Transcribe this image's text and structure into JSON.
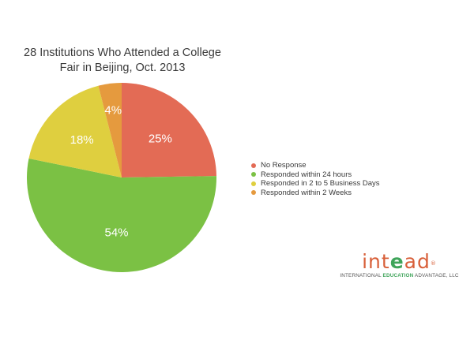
{
  "chart_data": {
    "type": "pie",
    "title_lines": [
      "28 Institutions Who Attended a College",
      "Fair in Beijing, Oct. 2013"
    ],
    "slices": [
      {
        "label": "No Response",
        "value": 25,
        "display": "25%",
        "color": "#e36b55"
      },
      {
        "label": "Responded within 24 hours",
        "value": 54,
        "display": "54%",
        "color": "#7bc144"
      },
      {
        "label": "Responded in 2 to 5 Business Days",
        "value": 18,
        "display": "18%",
        "color": "#dfcf3f"
      },
      {
        "label": "Responded within 2 Weeks",
        "value": 4,
        "display": "4%",
        "color": "#e59a3e"
      }
    ],
    "legend_position": "right"
  },
  "logo": {
    "part1": "int",
    "part2": "e",
    "part3": "ad",
    "mark": "®",
    "tag_before": "INTERNATIONAL ",
    "tag_bold": "EDUCATION",
    "tag_after": " ADVANTAGE, LLC"
  }
}
